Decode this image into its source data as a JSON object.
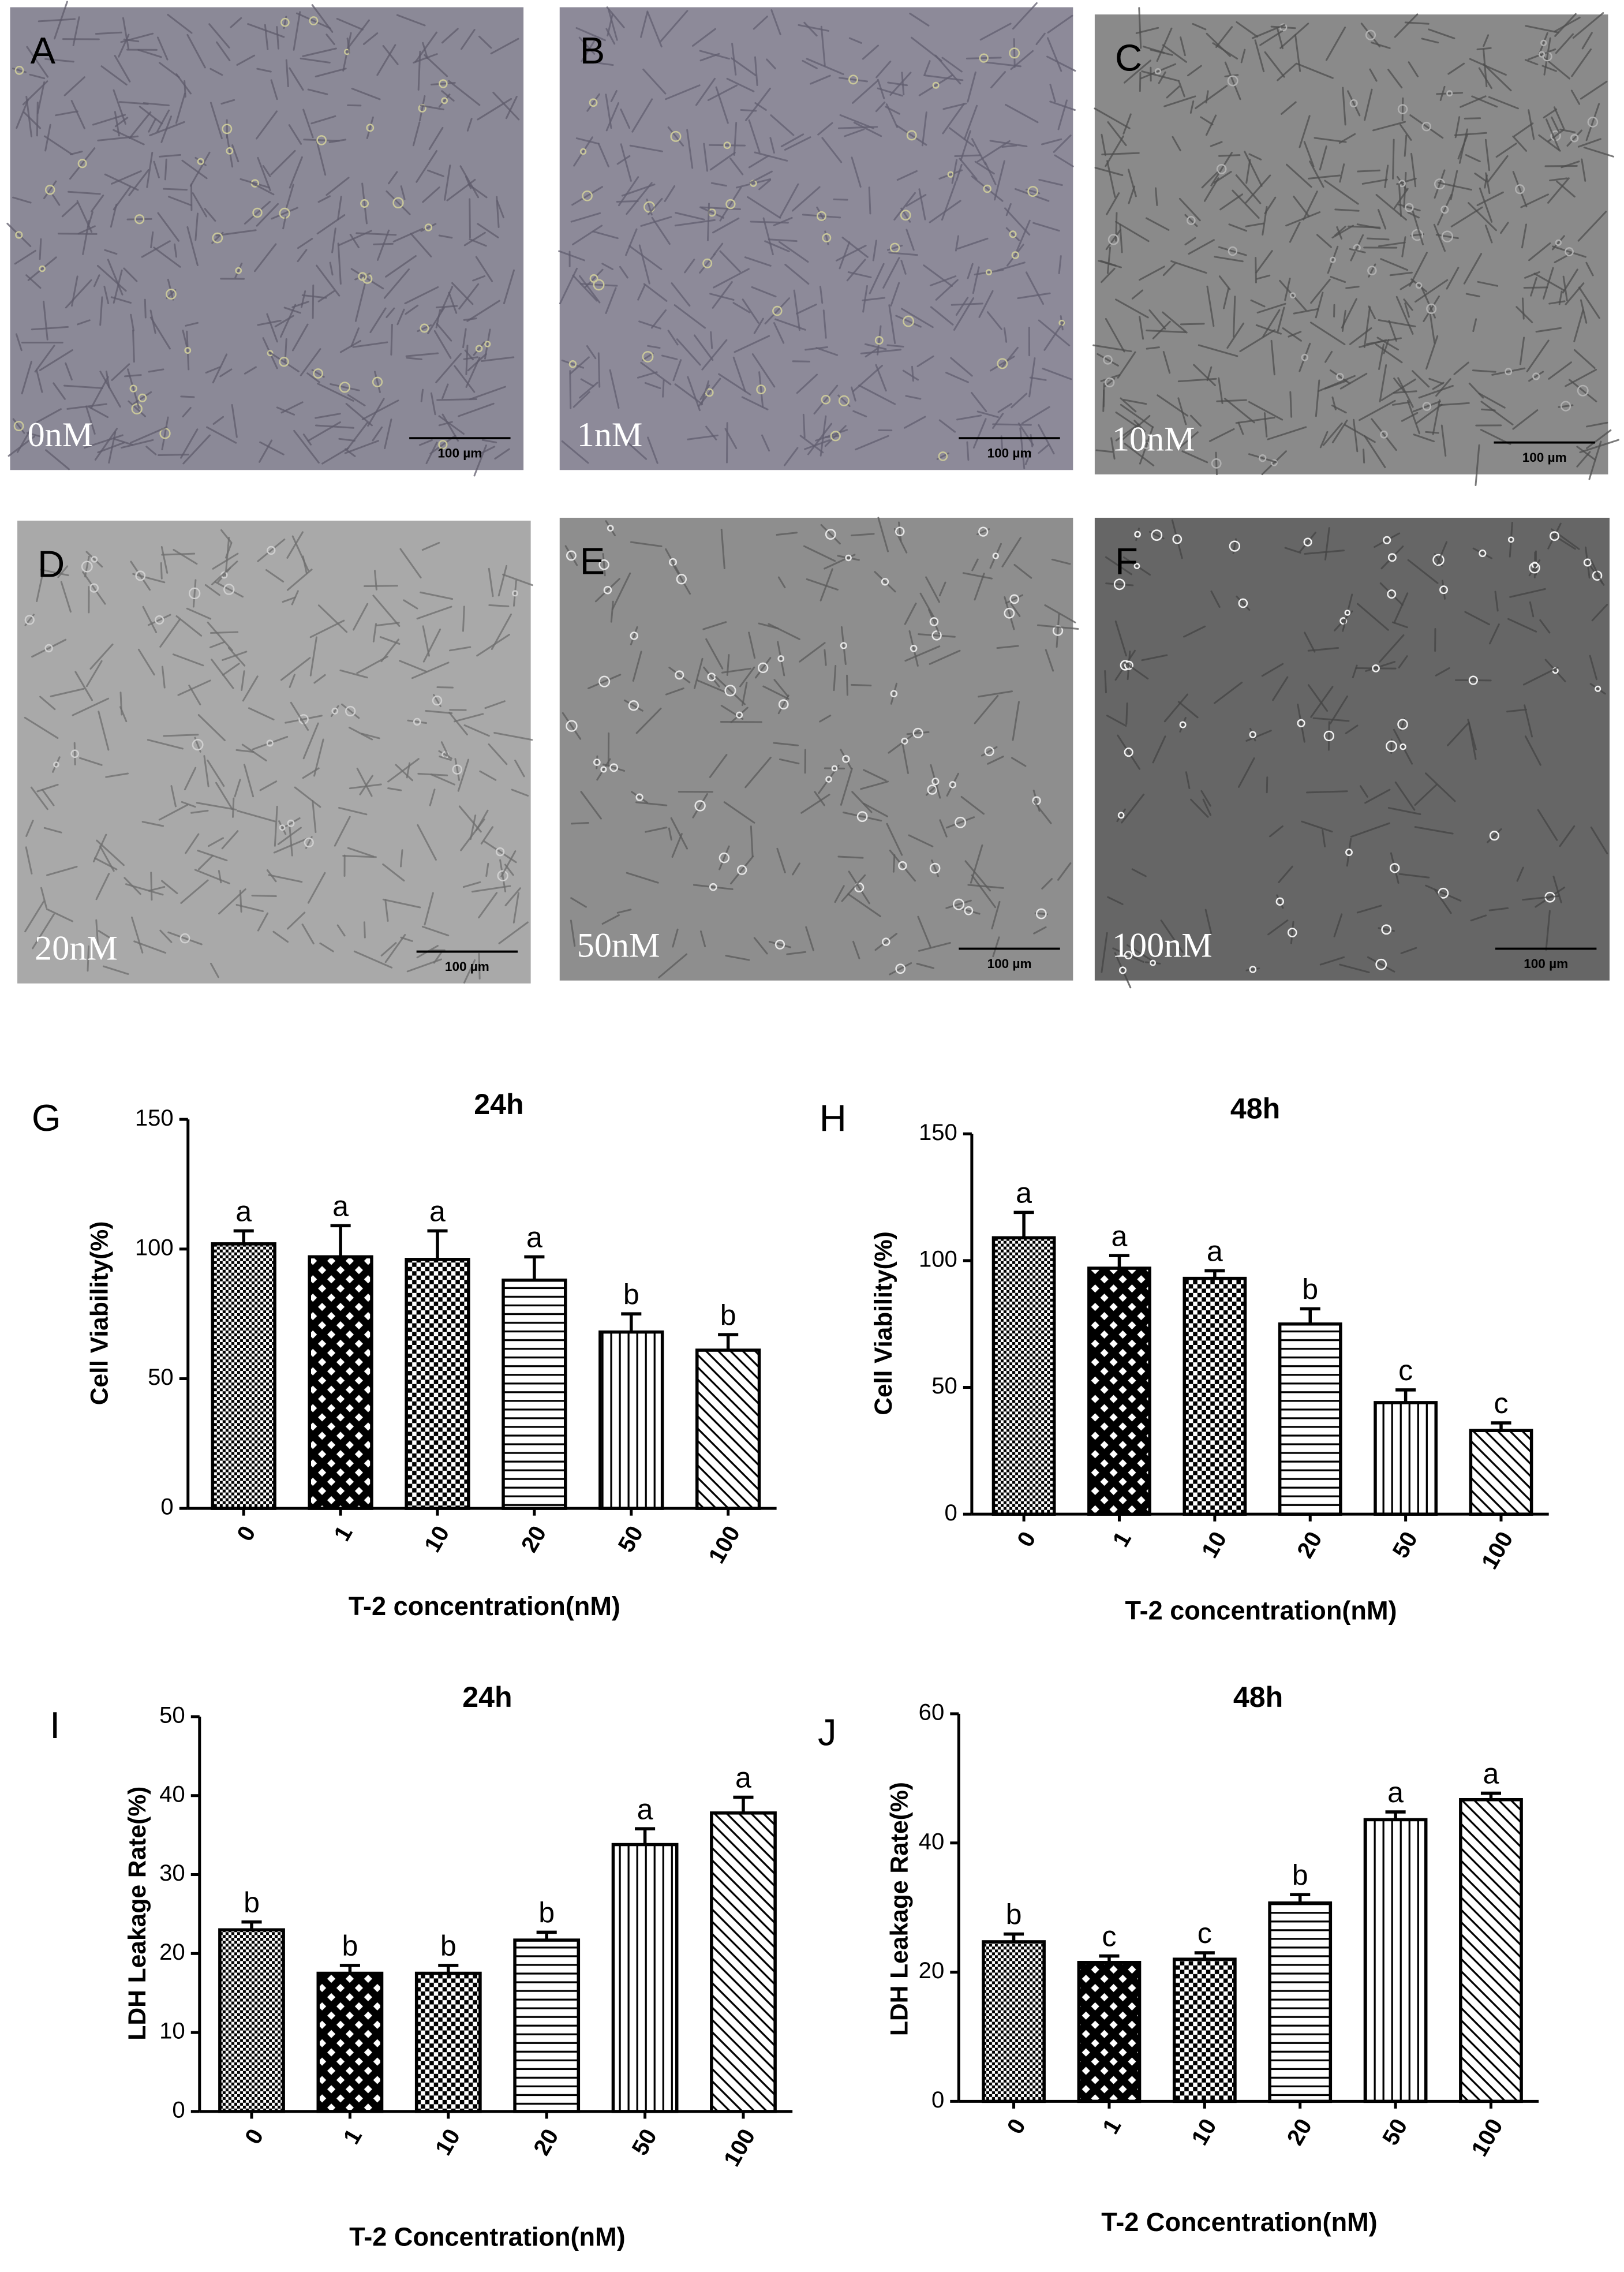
{
  "micrographs": [
    {
      "panel": "A",
      "label": "0nM",
      "scale": "100 µm"
    },
    {
      "panel": "B",
      "label": "1nM",
      "scale": "100 µm"
    },
    {
      "panel": "C",
      "label": "10nM",
      "scale": "100 µm"
    },
    {
      "panel": "D",
      "label": "20nM",
      "scale": "100 µm"
    },
    {
      "panel": "E",
      "label": "50nM",
      "scale": "100 µm"
    },
    {
      "panel": "F",
      "label": "100nM",
      "scale": "100 µm"
    }
  ],
  "chart_data": [
    {
      "type": "bar",
      "panel": "G",
      "title": "24h",
      "y_label": "Cell Viability(%)",
      "x_label": "T-2 concentration(nM)",
      "categories": [
        "0",
        "1",
        "10",
        "20",
        "50",
        "100"
      ],
      "values": [
        102,
        97,
        96,
        88,
        68,
        61
      ],
      "errors": [
        5,
        12,
        11,
        9,
        7,
        6
      ],
      "annotations": [
        "a",
        "a",
        "a",
        "a",
        "b",
        "b"
      ],
      "ylim": [
        0,
        150
      ],
      "yticks": [
        0,
        50,
        100,
        150
      ],
      "color": "#000000"
    },
    {
      "type": "bar",
      "panel": "H",
      "title": "48h",
      "y_label": "Cell Viability(%)",
      "x_label": "T-2 concentration(nM)",
      "categories": [
        "0",
        "1",
        "10",
        "20",
        "50",
        "100"
      ],
      "values": [
        109,
        97,
        93,
        75,
        44,
        33
      ],
      "errors": [
        10,
        5,
        3,
        6,
        5,
        3
      ],
      "annotations": [
        "a",
        "a",
        "a",
        "b",
        "c",
        "c"
      ],
      "ylim": [
        0,
        150
      ],
      "yticks": [
        0,
        50,
        100,
        150
      ],
      "color": "#000000"
    },
    {
      "type": "bar",
      "panel": "I",
      "title": "24h",
      "y_label": "LDH Leakage Rate(%)",
      "x_label": "T-2 Concentration(nM)",
      "categories": [
        "0",
        "1",
        "10",
        "20",
        "50",
        "100"
      ],
      "values": [
        23,
        17.5,
        17.5,
        21.7,
        33.8,
        37.8
      ],
      "errors": [
        1,
        1,
        1,
        1,
        2,
        2
      ],
      "annotations": [
        "b",
        "b",
        "b",
        "b",
        "a",
        "a"
      ],
      "ylim": [
        0,
        50
      ],
      "yticks": [
        0,
        10,
        20,
        30,
        40,
        50
      ],
      "color": "#000000"
    },
    {
      "type": "bar",
      "panel": "J",
      "title": "48h",
      "y_label": "LDH Leakage Rate(%)",
      "x_label": "T-2 Concentration(nM)",
      "categories": [
        "0",
        "1",
        "10",
        "20",
        "50",
        "100"
      ],
      "values": [
        24.7,
        21.5,
        22,
        30.7,
        43.6,
        46.7
      ],
      "errors": [
        1.2,
        1,
        1,
        1.3,
        1.2,
        1
      ],
      "annotations": [
        "b",
        "c",
        "c",
        "b",
        "a",
        "a"
      ],
      "ylim": [
        0,
        60
      ],
      "yticks": [
        0,
        20,
        40,
        60
      ],
      "color": "#000000"
    }
  ]
}
